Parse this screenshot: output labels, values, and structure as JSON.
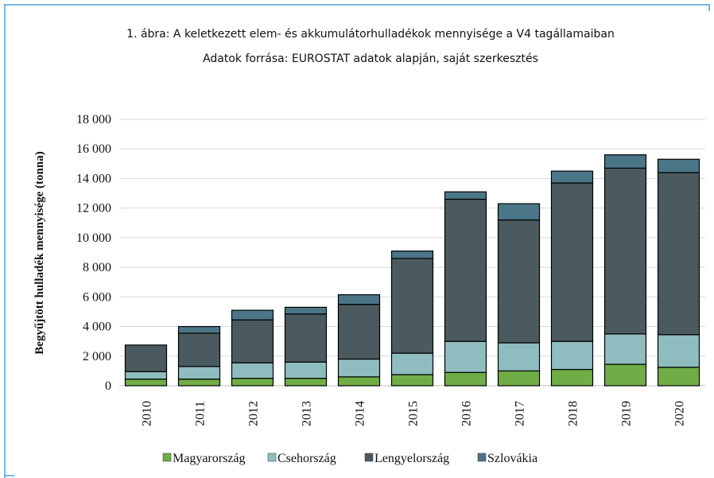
{
  "chart_data": {
    "type": "stacked_bar",
    "title": "1. ábra: A keletkezett elem- és akkumulátorhulladékok mennyisége a V4 tagállamaiban",
    "subtitle": "Adatok forrása: EUROSTAT adatok alapján, saját szerkesztés",
    "y_label": "Begyűjtött hulladék mennyisége (tonna)",
    "categories": [
      "2010",
      "2011",
      "2012",
      "2013",
      "2014",
      "2015",
      "2016",
      "2017",
      "2018",
      "2019",
      "2020"
    ],
    "series": [
      {
        "name": "Magyarország",
        "color": "#70ad47",
        "values": [
          450,
          450,
          500,
          500,
          600,
          750,
          900,
          1000,
          1100,
          1450,
          1250
        ]
      },
      {
        "name": "Csehország",
        "color": "#8fbcbf",
        "values": [
          500,
          850,
          1050,
          1100,
          1200,
          1450,
          2100,
          1900,
          1900,
          2050,
          2200
        ]
      },
      {
        "name": "Lengyelország",
        "color": "#4a5a5e",
        "values": [
          1800,
          2250,
          2900,
          3250,
          3700,
          6400,
          9600,
          8300,
          10700,
          11200,
          10950
        ]
      },
      {
        "name": "Szlovákia",
        "color": "#4b7687",
        "values": [
          0,
          450,
          650,
          450,
          650,
          500,
          500,
          1100,
          800,
          900,
          900
        ]
      }
    ],
    "ylim": [
      0,
      18000
    ],
    "yticks": [
      0,
      {
        "value": 2000,
        "label": "2 000"
      },
      {
        "value": 4000,
        "label": "4 000"
      },
      {
        "value": 6000,
        "label": "6 000"
      },
      {
        "value": 8000,
        "label": "8 000"
      },
      {
        "value": 10000,
        "label": "10 000"
      },
      {
        "value": 12000,
        "label": "12 000"
      },
      {
        "value": 14000,
        "label": "14 000"
      },
      {
        "value": 16000,
        "label": "16 000"
      },
      {
        "value": 18000,
        "label": "18 000"
      }
    ],
    "grid": true,
    "legend": "bottom"
  }
}
